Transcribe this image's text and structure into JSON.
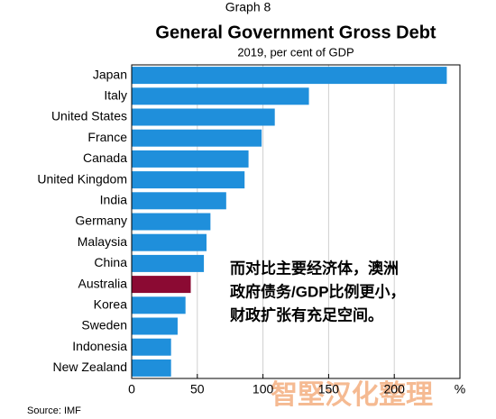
{
  "chart_data": {
    "type": "bar",
    "orientation": "horizontal",
    "supertitle": "Graph 8",
    "title": "General Government Gross Debt",
    "subtitle": "2019, per cent of GDP",
    "categories": [
      "Japan",
      "Italy",
      "United States",
      "France",
      "Canada",
      "United Kingdom",
      "India",
      "Germany",
      "Malaysia",
      "China",
      "Australia",
      "Korea",
      "Sweden",
      "Indonesia",
      "New Zealand"
    ],
    "values": [
      240,
      135,
      109,
      99,
      89,
      86,
      72,
      60,
      57,
      55,
      45,
      41,
      35,
      30,
      30
    ],
    "colors": [
      "#1f8fdb",
      "#1f8fdb",
      "#1f8fdb",
      "#1f8fdb",
      "#1f8fdb",
      "#1f8fdb",
      "#1f8fdb",
      "#1f8fdb",
      "#1f8fdb",
      "#1f8fdb",
      "#8b0a33",
      "#1f8fdb",
      "#1f8fdb",
      "#1f8fdb",
      "#1f8fdb"
    ],
    "xlim": [
      0,
      250
    ],
    "xticks": [
      0,
      50,
      100,
      150,
      200,
      {
        "value": 250,
        "label": "%"
      }
    ],
    "grid": true,
    "annotation": [
      "而对比主要经济体，澳洲",
      "政府债务/GDP比例更小，",
      "财政扩张有充足空间。"
    ],
    "source": "Source:   IMF",
    "watermark": "智堅汉化整理"
  }
}
